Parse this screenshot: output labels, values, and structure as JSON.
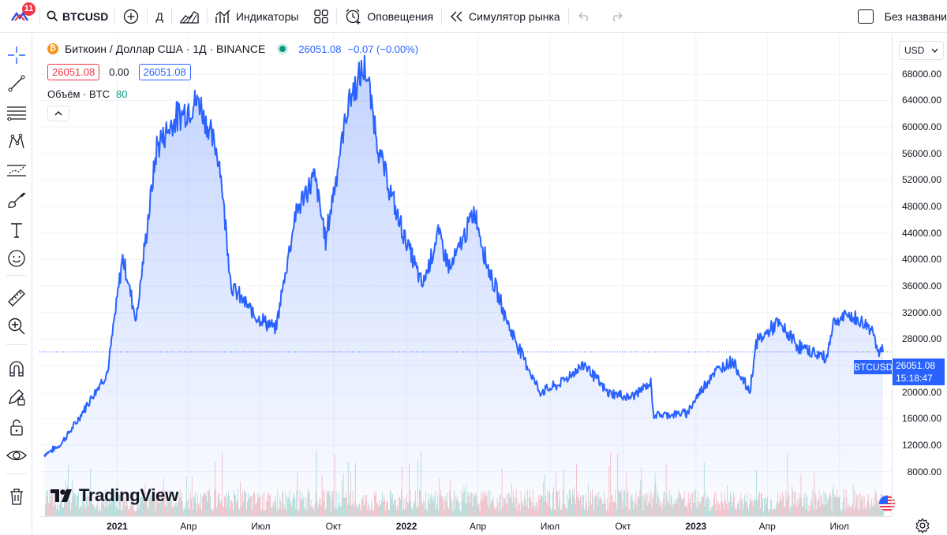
{
  "toolbar": {
    "notifications_count": "11",
    "symbol": "BTCUSD",
    "interval": "Д",
    "indicators_label": "Индикаторы",
    "alerts_label": "Оповещения",
    "replay_label": "Симулятор рынка",
    "layout_name": "Без названи"
  },
  "legend": {
    "title": "Биткоин / Доллар США · 1Д · BINANCE",
    "price": "26051.08",
    "change": "−0.07 (−0.00%)",
    "bid": "26051.08",
    "spread": "0.00",
    "ask": "26051.08",
    "volume_label": "Объём · BTC",
    "volume_value": "80"
  },
  "price_scale": {
    "currency": "USD",
    "last_price": "26051.08",
    "countdown": "15:18:47",
    "symbol_tag": "BTCUSD"
  },
  "watermark": "TradingView",
  "colors": {
    "line": "#2962ff",
    "area_top": "#2962ff",
    "volume_up": "#089981",
    "volume_down": "#f23645",
    "accent": "#2962ff"
  },
  "chart_data": {
    "type": "area",
    "title": "Биткоин / Доллар США · 1Д · BINANCE",
    "series": [
      {
        "x": [
          "2020-10-01",
          "2020-10-20",
          "2020-11-10",
          "2020-12-01",
          "2020-12-20",
          "2021-01-08",
          "2021-01-25",
          "2021-02-20",
          "2021-03-13",
          "2021-04-14",
          "2021-05-10",
          "2021-05-25",
          "2021-06-22",
          "2021-07-20",
          "2021-08-14",
          "2021-09-07",
          "2021-09-21",
          "2021-10-20",
          "2021-11-10",
          "2021-11-28",
          "2021-12-20",
          "2022-01-21",
          "2022-02-10",
          "2022-02-25",
          "2022-03-28",
          "2022-04-12",
          "2022-05-10",
          "2022-06-18",
          "2022-07-10",
          "2022-08-14",
          "2022-09-10",
          "2022-10-10",
          "2022-11-05",
          "2022-11-09",
          "2022-12-20",
          "2023-01-21",
          "2023-02-16",
          "2023-03-10",
          "2023-03-18",
          "2023-04-14",
          "2023-05-12",
          "2023-06-15",
          "2023-06-23",
          "2023-07-13",
          "2023-08-14",
          "2023-08-18",
          "2023-08-25"
        ],
        "values": [
          10600,
          11900,
          15300,
          19500,
          23000,
          40500,
          31000,
          57000,
          61000,
          64000,
          55000,
          36000,
          31800,
          29500,
          47000,
          52600,
          43000,
          64000,
          69000,
          56000,
          46700,
          36000,
          44000,
          38500,
          47300,
          39500,
          30000,
          20000,
          21000,
          24300,
          20000,
          19200,
          21300,
          16500,
          16800,
          22700,
          24800,
          20000,
          27500,
          30400,
          26800,
          25100,
          30500,
          31600,
          29300,
          26000,
          26051
        ]
      }
    ],
    "ylim": [
      7000,
      70000
    ],
    "yticks": [
      "8000.00",
      "12000.00",
      "16000.00",
      "20000.00",
      "24000.00",
      "28000.00",
      "32000.00",
      "36000.00",
      "40000.00",
      "44000.00",
      "48000.00",
      "52000.00",
      "56000.00",
      "60000.00",
      "64000.00",
      "68000.00"
    ],
    "xticks": [
      {
        "label": "2021",
        "date": "2021-01-01",
        "bold": true
      },
      {
        "label": "Апр",
        "date": "2021-04-01"
      },
      {
        "label": "Июл",
        "date": "2021-07-01"
      },
      {
        "label": "Окт",
        "date": "2021-10-01"
      },
      {
        "label": "2022",
        "date": "2022-01-01",
        "bold": true
      },
      {
        "label": "Апр",
        "date": "2022-04-01"
      },
      {
        "label": "Июл",
        "date": "2022-07-01"
      },
      {
        "label": "Окт",
        "date": "2022-10-01"
      },
      {
        "label": "2023",
        "date": "2023-01-01",
        "bold": true
      },
      {
        "label": "Апр",
        "date": "2023-04-01"
      },
      {
        "label": "Июл",
        "date": "2023-07-01"
      }
    ],
    "grid": true,
    "volume_pane": true
  }
}
